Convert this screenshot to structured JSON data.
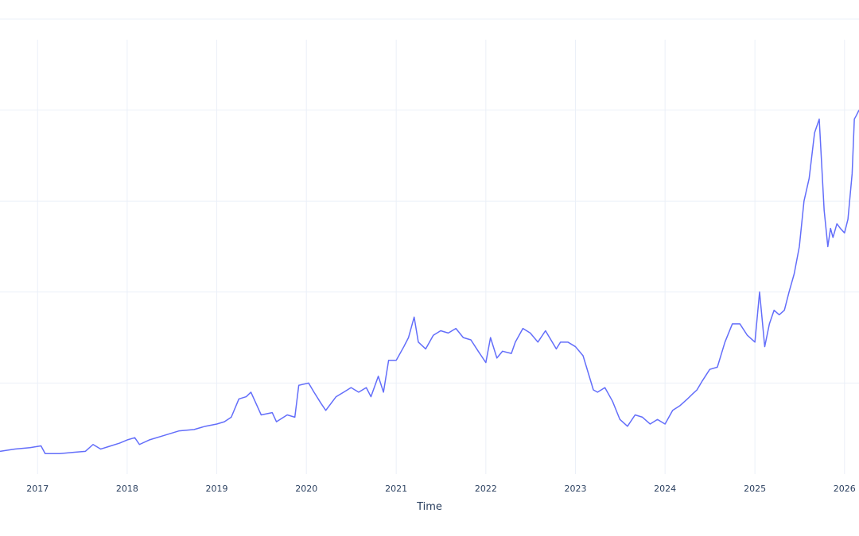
{
  "chart_data": {
    "type": "line",
    "title": "",
    "xlabel": "Time",
    "ylabel": "",
    "grid": true,
    "legend": "none",
    "color": "#636efa",
    "xlim": [
      "2016-08-01",
      "2026-03-01"
    ],
    "ylim": [
      0,
      1
    ],
    "x_ticks": [
      "2017",
      "2018",
      "2019",
      "2020",
      "2021",
      "2022",
      "2023",
      "2024",
      "2025",
      "2026"
    ],
    "series": [
      {
        "x": [
          "2016-08-01",
          "2016-10-01",
          "2016-12-01",
          "2017-01-15",
          "2017-02-01",
          "2017-04-01",
          "2017-06-01",
          "2017-07-15",
          "2017-08-15",
          "2017-09-15",
          "2017-10-15",
          "2017-12-01",
          "2018-01-01",
          "2018-02-01",
          "2018-02-20",
          "2018-04-01",
          "2018-06-01",
          "2018-08-01",
          "2018-10-01",
          "2018-11-15",
          "2019-01-01",
          "2019-02-01",
          "2019-03-01",
          "2019-04-01",
          "2019-05-01",
          "2019-05-20",
          "2019-07-01",
          "2019-08-15",
          "2019-09-01",
          "2019-10-15",
          "2019-11-15",
          "2019-12-01",
          "2020-01-10",
          "2020-02-01",
          "2020-03-01",
          "2020-03-20",
          "2020-05-01",
          "2020-06-01",
          "2020-07-01",
          "2020-08-01",
          "2020-09-01",
          "2020-09-20",
          "2020-10-20",
          "2020-11-10",
          "2020-12-01",
          "2021-01-01",
          "2021-02-01",
          "2021-02-20",
          "2021-03-15",
          "2021-04-01",
          "2021-05-01",
          "2021-06-01",
          "2021-07-01",
          "2021-08-01",
          "2021-09-01",
          "2021-10-01",
          "2021-11-01",
          "2021-12-01",
          "2022-01-01",
          "2022-01-20",
          "2022-02-15",
          "2022-03-10",
          "2022-04-15",
          "2022-05-01",
          "2022-06-01",
          "2022-07-01",
          "2022-08-01",
          "2022-09-01",
          "2022-10-15",
          "2022-11-01",
          "2022-12-01",
          "2023-01-01",
          "2023-02-01",
          "2023-03-15",
          "2023-04-01",
          "2023-05-01",
          "2023-06-01",
          "2023-07-01",
          "2023-08-01",
          "2023-09-01",
          "2023-10-01",
          "2023-11-01",
          "2023-12-01",
          "2024-01-01",
          "2024-02-01",
          "2024-03-01",
          "2024-04-01",
          "2024-04-20",
          "2024-05-10",
          "2024-06-01",
          "2024-07-01",
          "2024-08-01",
          "2024-09-01",
          "2024-10-01",
          "2024-11-01",
          "2024-12-01",
          "2025-01-01",
          "2025-01-20",
          "2025-02-10",
          "2025-03-01",
          "2025-03-20",
          "2025-04-10",
          "2025-05-01",
          "2025-05-20",
          "2025-06-10",
          "2025-07-01",
          "2025-07-20",
          "2025-08-10",
          "2025-09-01",
          "2025-09-20",
          "2025-10-10",
          "2025-10-25",
          "2025-11-05",
          "2025-11-15",
          "2025-12-01",
          "2025-12-15",
          "2026-01-01",
          "2026-01-15",
          "2026-02-01",
          "2026-02-10",
          "2026-02-20",
          "2026-03-01"
        ],
        "y": [
          0.05,
          0.055,
          0.058,
          0.062,
          0.045,
          0.045,
          0.048,
          0.05,
          0.065,
          0.055,
          0.06,
          0.068,
          0.075,
          0.08,
          0.065,
          0.075,
          0.085,
          0.095,
          0.098,
          0.105,
          0.11,
          0.115,
          0.125,
          0.165,
          0.17,
          0.18,
          0.13,
          0.135,
          0.115,
          0.13,
          0.125,
          0.195,
          0.2,
          0.18,
          0.155,
          0.14,
          0.17,
          0.18,
          0.19,
          0.18,
          0.19,
          0.17,
          0.215,
          0.18,
          0.25,
          0.25,
          0.28,
          0.3,
          0.345,
          0.29,
          0.275,
          0.305,
          0.315,
          0.31,
          0.32,
          0.3,
          0.295,
          0.27,
          0.245,
          0.3,
          0.255,
          0.27,
          0.265,
          0.29,
          0.32,
          0.31,
          0.29,
          0.315,
          0.275,
          0.29,
          0.29,
          0.28,
          0.26,
          0.185,
          0.18,
          0.19,
          0.16,
          0.12,
          0.105,
          0.13,
          0.125,
          0.11,
          0.12,
          0.11,
          0.14,
          0.15,
          0.165,
          0.175,
          0.185,
          0.205,
          0.23,
          0.235,
          0.29,
          0.33,
          0.33,
          0.305,
          0.29,
          0.4,
          0.28,
          0.33,
          0.36,
          0.35,
          0.36,
          0.4,
          0.44,
          0.5,
          0.6,
          0.65,
          0.75,
          0.78,
          0.58,
          0.5,
          0.54,
          0.52,
          0.55,
          0.54,
          0.53,
          0.56,
          0.66,
          0.78,
          0.79,
          0.8
        ]
      }
    ]
  }
}
